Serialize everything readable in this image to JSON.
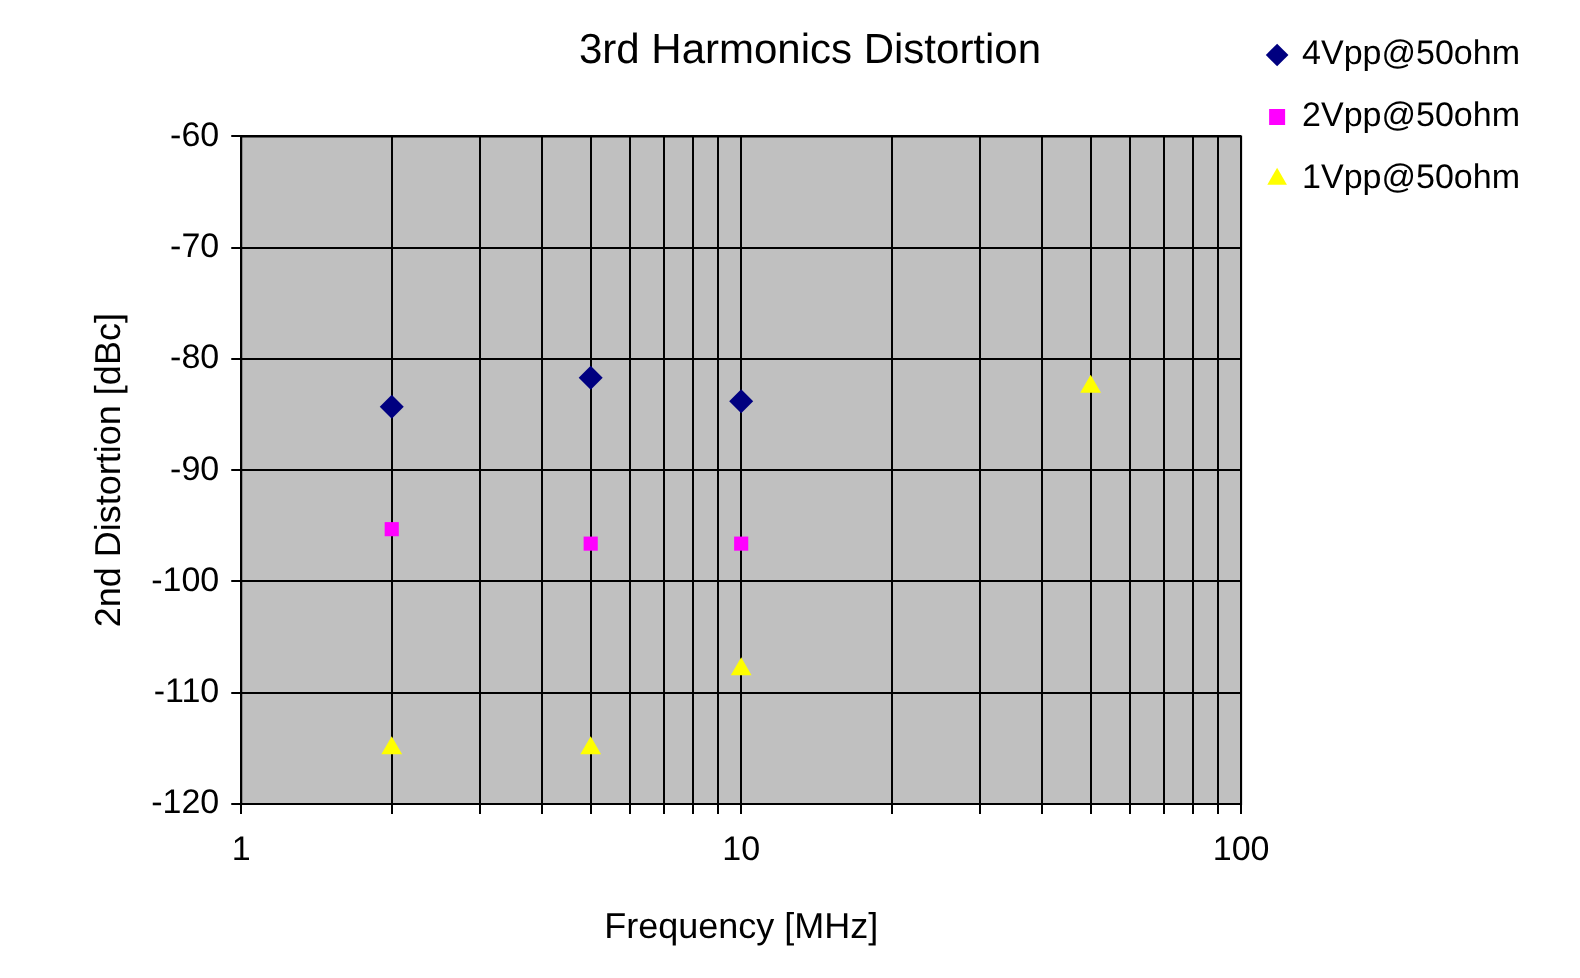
{
  "chart_data": {
    "type": "scatter",
    "title": "3rd Harmonics Distortion",
    "xlabel": "Frequency [MHz]",
    "ylabel": "2nd Distortion [dBc]",
    "log": "x",
    "xlim": [
      1,
      100
    ],
    "ylim": [
      -120,
      -60
    ],
    "xticks": [
      1,
      {
        "value": 2,
        "label": null
      },
      {
        "value": 3,
        "label": null
      },
      {
        "value": 4,
        "label": null
      },
      {
        "value": 5,
        "label": null
      },
      {
        "value": 6,
        "label": null
      },
      {
        "value": 7,
        "label": null
      },
      {
        "value": 8,
        "label": null
      },
      {
        "value": 9,
        "label": null
      },
      10,
      {
        "value": 20,
        "label": null
      },
      {
        "value": 30,
        "label": null
      },
      {
        "value": 40,
        "label": null
      },
      {
        "value": 50,
        "label": null
      },
      {
        "value": 60,
        "label": null
      },
      {
        "value": 70,
        "label": null
      },
      {
        "value": 80,
        "label": null
      },
      {
        "value": 90,
        "label": null
      },
      100
    ],
    "yticks": [
      -120,
      -110,
      -100,
      -90,
      -80,
      -70,
      -60
    ],
    "grid": true,
    "legend": "right",
    "series": [
      {
        "name": "4Vpp@50ohm",
        "color": "#000080",
        "marker": "diamond",
        "x": [
          2,
          5,
          10
        ],
        "values": [
          -84.3,
          -81.7,
          -83.8
        ]
      },
      {
        "name": "2Vpp@50ohm",
        "color": "#ff00ff",
        "marker": "square",
        "x": [
          2,
          5,
          10
        ],
        "values": [
          -95.3,
          -96.6,
          -96.6
        ]
      },
      {
        "name": "1Vpp@50ohm",
        "color": "#ffff00",
        "marker": "triangle",
        "x": [
          2,
          5,
          10,
          50
        ],
        "values": [
          -115,
          -115,
          -107.9,
          -82.5
        ]
      }
    ]
  }
}
